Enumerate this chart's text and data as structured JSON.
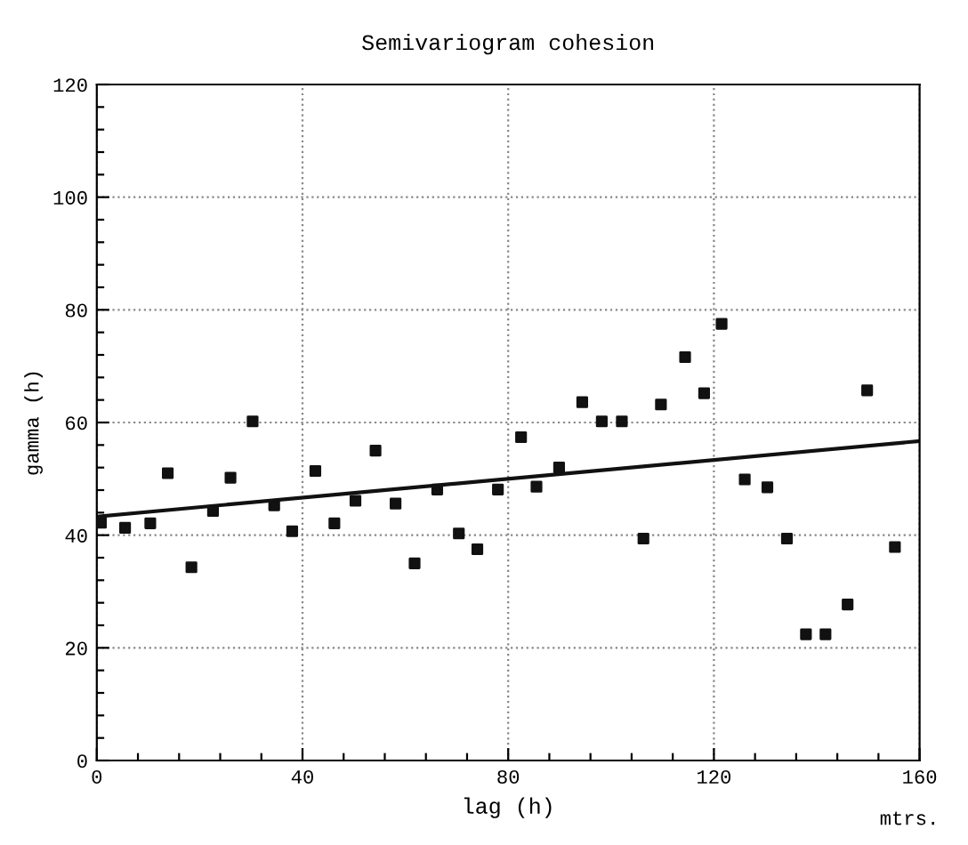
{
  "chart_data": {
    "type": "scatter",
    "title": "Semivariogram cohesion",
    "xlabel": "lag (h)",
    "ylabel": "gamma (h)",
    "annotations": [
      "mtrs."
    ],
    "series": [
      {
        "color": "#111111",
        "marker": "square",
        "x": [
          0.8,
          5.5,
          10.4,
          13.8,
          18.4,
          22.6,
          26,
          30.3,
          34.5,
          38,
          42.5,
          46.2,
          50.3,
          54.2,
          58.1,
          61.8,
          66.2,
          70.4,
          74,
          78,
          82.5,
          85.5,
          89.9,
          94.4,
          98.2,
          102.1,
          106.3,
          109.7,
          114.4,
          118.1,
          121.5,
          126,
          130.4,
          134.2,
          137.9,
          141.7,
          146,
          149.8,
          155.2
        ],
        "values": [
          42.2,
          41.3,
          42.1,
          51,
          34.3,
          44.3,
          50.2,
          60.2,
          45.3,
          40.7,
          51.4,
          42.1,
          46.1,
          55,
          45.6,
          35,
          48.1,
          40.3,
          37.5,
          48.1,
          57.4,
          48.6,
          52,
          63.6,
          60.2,
          60.2,
          39.4,
          63.2,
          71.6,
          65.2,
          77.5,
          49.9,
          48.5,
          39.4,
          22.4,
          22.4,
          27.7,
          65.7,
          37.9
        ]
      },
      {
        "type": "line",
        "color": "#111111",
        "marker": "none",
        "line_style": "solid",
        "x": [
          0,
          160
        ],
        "values": [
          43.3,
          56.7
        ]
      }
    ],
    "xlim": [
      0,
      160
    ],
    "ylim": [
      0,
      120
    ],
    "xticks": [
      0,
      {
        "value": 8,
        "label": null
      },
      {
        "value": 16,
        "label": null
      },
      {
        "value": 24,
        "label": null
      },
      {
        "value": 32,
        "label": null
      },
      40,
      {
        "value": 48,
        "label": null
      },
      {
        "value": 56,
        "label": null
      },
      {
        "value": 64,
        "label": null
      },
      {
        "value": 72,
        "label": null
      },
      80,
      {
        "value": 88,
        "label": null
      },
      {
        "value": 96,
        "label": null
      },
      {
        "value": 104,
        "label": null
      },
      {
        "value": 112,
        "label": null
      },
      120,
      {
        "value": 128,
        "label": null
      },
      {
        "value": 136,
        "label": null
      },
      {
        "value": 144,
        "label": null
      },
      {
        "value": 152,
        "label": null
      },
      160
    ],
    "yticks": [
      0,
      {
        "value": 4,
        "label": null
      },
      {
        "value": 8,
        "label": null
      },
      {
        "value": 12,
        "label": null
      },
      {
        "value": 16,
        "label": null
      },
      20,
      {
        "value": 24,
        "label": null
      },
      {
        "value": 28,
        "label": null
      },
      {
        "value": 32,
        "label": null
      },
      {
        "value": 36,
        "label": null
      },
      40,
      {
        "value": 44,
        "label": null
      },
      {
        "value": 48,
        "label": null
      },
      {
        "value": 52,
        "label": null
      },
      {
        "value": 56,
        "label": null
      },
      60,
      {
        "value": 64,
        "label": null
      },
      {
        "value": 68,
        "label": null
      },
      {
        "value": 72,
        "label": null
      },
      {
        "value": 76,
        "label": null
      },
      80,
      {
        "value": 84,
        "label": null
      },
      {
        "value": 88,
        "label": null
      },
      {
        "value": 92,
        "label": null
      },
      {
        "value": 96,
        "label": null
      },
      100,
      {
        "value": 104,
        "label": null
      },
      {
        "value": 108,
        "label": null
      },
      {
        "value": 112,
        "label": null
      },
      {
        "value": 116,
        "label": null
      },
      120
    ],
    "grid": true,
    "legend": false
  }
}
